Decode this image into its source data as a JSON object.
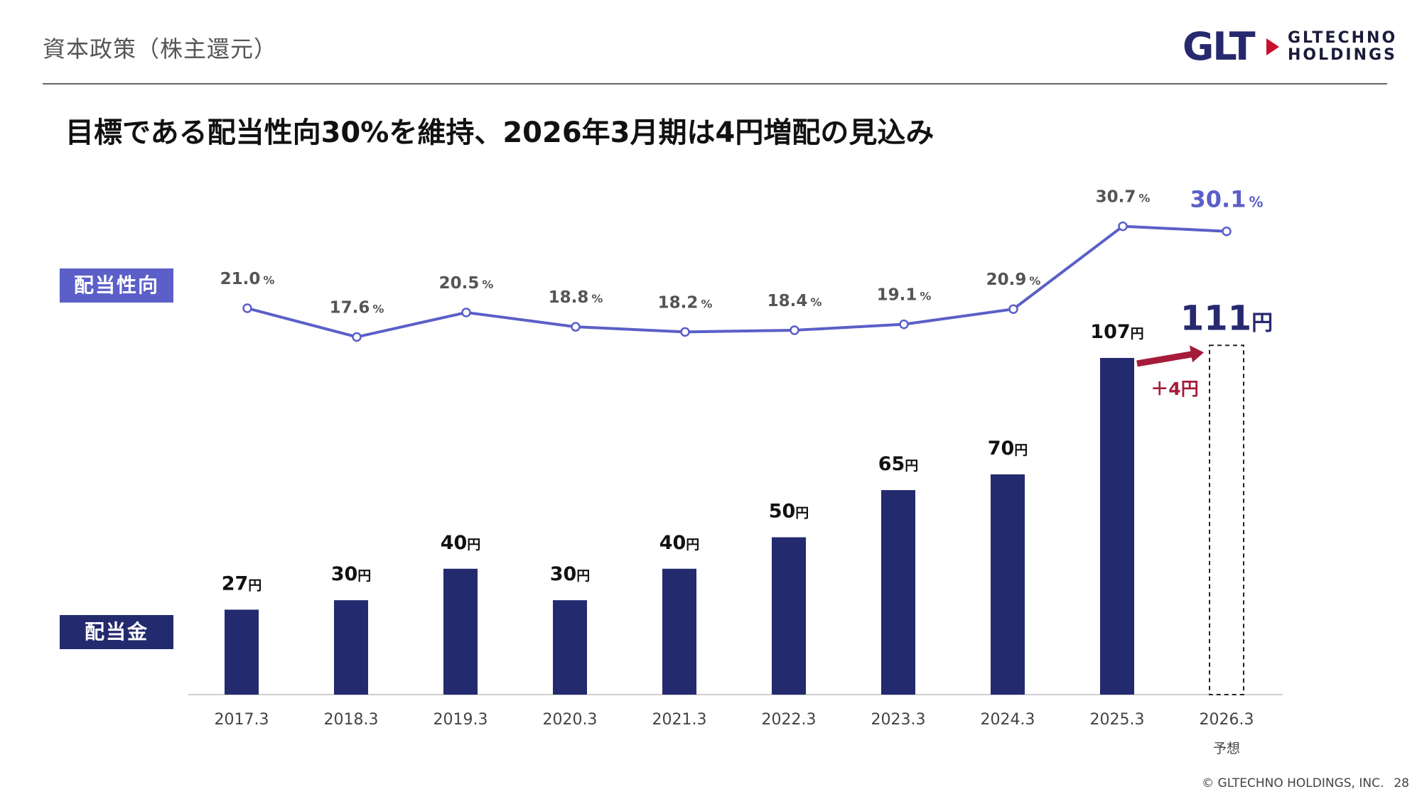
{
  "header": {
    "title": "資本政策（株主還元）"
  },
  "logo": {
    "mark": "GLT",
    "line1": "GLTECHNO",
    "line2": "HOLDINGS"
  },
  "headline": "目標である配当性向30%を維持、2026年3月期は4円増配の見込み",
  "labels": {
    "payout": "配当性向",
    "dividend": "配当金"
  },
  "footer": {
    "copyright": "© GLTECHNO HOLDINGS, INC.",
    "page": "28"
  },
  "colors": {
    "bar": "#242a6e",
    "line": "#5b5fc7",
    "arrow": "#a51c3a",
    "forecast_value": "#26296e"
  },
  "chart_data": {
    "type": "bar+line",
    "categories": [
      "2017.3",
      "2018.3",
      "2019.3",
      "2020.3",
      "2021.3",
      "2022.3",
      "2023.3",
      "2024.3",
      "2025.3",
      "2026.3"
    ],
    "forecast_note": "予想",
    "dividend": {
      "unit": "円",
      "values": [
        27,
        30,
        40,
        30,
        40,
        50,
        65,
        70,
        107,
        111
      ],
      "forecast_index": 9
    },
    "payout_ratio": {
      "unit": "%",
      "values": [
        21.0,
        17.6,
        20.5,
        18.8,
        18.2,
        18.4,
        19.1,
        20.9,
        30.7,
        30.1
      ],
      "labels": [
        "21.0",
        "17.6",
        "20.5",
        "18.8",
        "18.2",
        "18.4",
        "19.1",
        "20.9",
        "30.7",
        "30.1"
      ]
    },
    "increase_label": "＋4円"
  }
}
